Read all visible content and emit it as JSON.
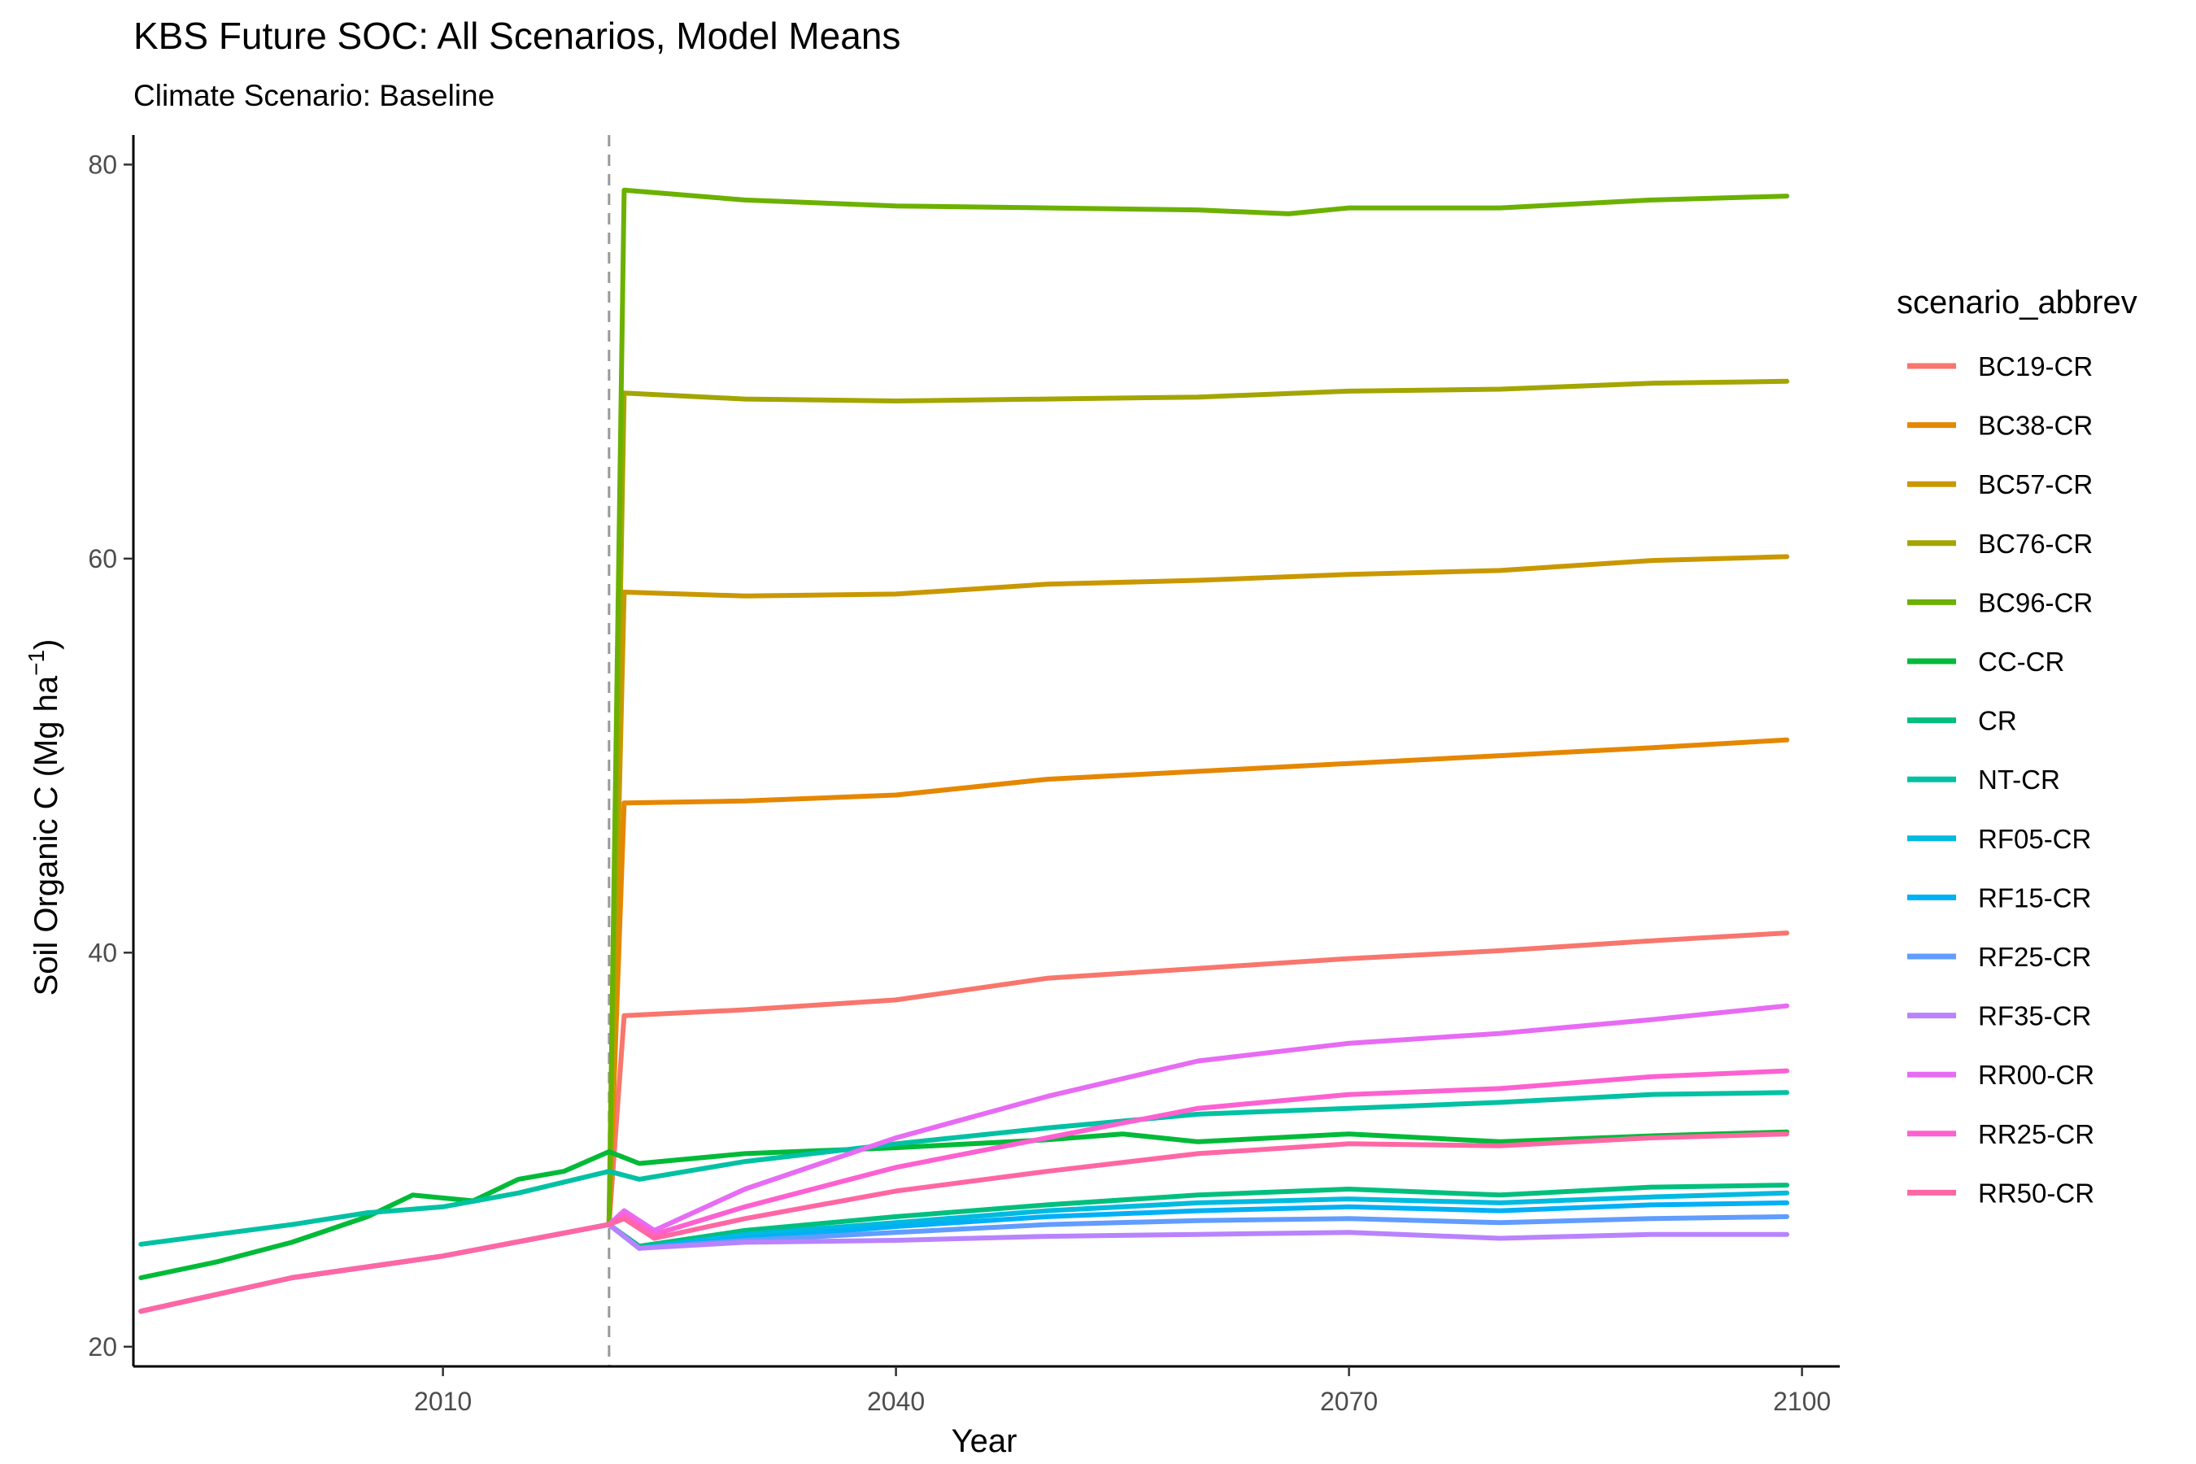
{
  "chart_data": {
    "type": "line",
    "title": "KBS  Future SOC: All Scenarios, Model Means",
    "subtitle": "Climate Scenario: Baseline",
    "xlabel": "Year",
    "ylabel": "Soil Organic C (Mg ha",
    "ylabel_sup": "−1",
    "ylabel_suffix": ")",
    "xlim": [
      1989.5,
      2102.5
    ],
    "ylim": [
      19,
      81.5
    ],
    "x_ticks": [
      2010,
      2040,
      2070,
      2100
    ],
    "y_ticks": [
      20,
      40,
      60,
      80
    ],
    "reference_line": {
      "x": 2021,
      "style": "dashed"
    },
    "grid": false,
    "legend": {
      "title": "scenario_abbrev",
      "placement": "right"
    },
    "series": [
      {
        "name": "BC19-CR",
        "color": "#F8766D",
        "points": [
          [
            1990,
            21.8
          ],
          [
            2000,
            23.5
          ],
          [
            2010,
            24.6
          ],
          [
            2021,
            26.2
          ],
          [
            2022,
            36.8
          ],
          [
            2030,
            37.1
          ],
          [
            2040,
            37.6
          ],
          [
            2050,
            38.7
          ],
          [
            2060,
            39.2
          ],
          [
            2070,
            39.7
          ],
          [
            2080,
            40.1
          ],
          [
            2090,
            40.6
          ],
          [
            2099,
            41.0
          ]
        ]
      },
      {
        "name": "BC38-CR",
        "color": "#E58700",
        "points": [
          [
            1990,
            21.8
          ],
          [
            2000,
            23.5
          ],
          [
            2010,
            24.6
          ],
          [
            2021,
            26.2
          ],
          [
            2022,
            47.6
          ],
          [
            2030,
            47.7
          ],
          [
            2040,
            48.0
          ],
          [
            2050,
            48.8
          ],
          [
            2060,
            49.2
          ],
          [
            2070,
            49.6
          ],
          [
            2080,
            50.0
          ],
          [
            2090,
            50.4
          ],
          [
            2099,
            50.8
          ]
        ]
      },
      {
        "name": "BC57-CR",
        "color": "#C99800",
        "points": [
          [
            1990,
            21.8
          ],
          [
            2000,
            23.5
          ],
          [
            2010,
            24.6
          ],
          [
            2021,
            26.2
          ],
          [
            2022,
            58.3
          ],
          [
            2030,
            58.1
          ],
          [
            2040,
            58.2
          ],
          [
            2050,
            58.7
          ],
          [
            2060,
            58.9
          ],
          [
            2070,
            59.2
          ],
          [
            2080,
            59.4
          ],
          [
            2090,
            59.9
          ],
          [
            2099,
            60.1
          ]
        ]
      },
      {
        "name": "BC76-CR",
        "color": "#A3A500",
        "points": [
          [
            1990,
            21.8
          ],
          [
            2000,
            23.5
          ],
          [
            2010,
            24.6
          ],
          [
            2021,
            26.2
          ],
          [
            2022,
            68.4
          ],
          [
            2030,
            68.1
          ],
          [
            2040,
            68.0
          ],
          [
            2050,
            68.1
          ],
          [
            2060,
            68.2
          ],
          [
            2070,
            68.5
          ],
          [
            2080,
            68.6
          ],
          [
            2090,
            68.9
          ],
          [
            2099,
            69.0
          ]
        ]
      },
      {
        "name": "BC96-CR",
        "color": "#6BB100",
        "points": [
          [
            1990,
            21.8
          ],
          [
            2000,
            23.5
          ],
          [
            2010,
            24.6
          ],
          [
            2021,
            26.2
          ],
          [
            2022,
            78.7
          ],
          [
            2030,
            78.2
          ],
          [
            2040,
            77.9
          ],
          [
            2050,
            77.8
          ],
          [
            2060,
            77.7
          ],
          [
            2066,
            77.5
          ],
          [
            2070,
            77.8
          ],
          [
            2080,
            77.8
          ],
          [
            2090,
            78.2
          ],
          [
            2099,
            78.4
          ]
        ]
      },
      {
        "name": "CC-CR",
        "color": "#00BA38",
        "points": [
          [
            1990,
            23.5
          ],
          [
            1995,
            24.3
          ],
          [
            2000,
            25.3
          ],
          [
            2005,
            26.6
          ],
          [
            2008,
            27.7
          ],
          [
            2012,
            27.4
          ],
          [
            2015,
            28.5
          ],
          [
            2018,
            28.9
          ],
          [
            2021,
            29.9
          ],
          [
            2023,
            29.3
          ],
          [
            2030,
            29.8
          ],
          [
            2040,
            30.1
          ],
          [
            2050,
            30.5
          ],
          [
            2055,
            30.8
          ],
          [
            2060,
            30.4
          ],
          [
            2070,
            30.8
          ],
          [
            2080,
            30.4
          ],
          [
            2090,
            30.7
          ],
          [
            2099,
            30.9
          ]
        ]
      },
      {
        "name": "CR",
        "color": "#00BF7D",
        "points": [
          [
            1990,
            21.8
          ],
          [
            2000,
            23.5
          ],
          [
            2010,
            24.6
          ],
          [
            2021,
            26.2
          ],
          [
            2023,
            25.1
          ],
          [
            2030,
            25.9
          ],
          [
            2040,
            26.6
          ],
          [
            2050,
            27.2
          ],
          [
            2060,
            27.7
          ],
          [
            2070,
            28.0
          ],
          [
            2080,
            27.7
          ],
          [
            2090,
            28.1
          ],
          [
            2099,
            28.2
          ]
        ]
      },
      {
        "name": "NT-CR",
        "color": "#00C1A3",
        "points": [
          [
            1990,
            25.2
          ],
          [
            1995,
            25.7
          ],
          [
            2000,
            26.2
          ],
          [
            2005,
            26.8
          ],
          [
            2010,
            27.1
          ],
          [
            2015,
            27.8
          ],
          [
            2021,
            28.9
          ],
          [
            2023,
            28.5
          ],
          [
            2030,
            29.4
          ],
          [
            2040,
            30.3
          ],
          [
            2050,
            31.1
          ],
          [
            2060,
            31.8
          ],
          [
            2070,
            32.1
          ],
          [
            2080,
            32.4
          ],
          [
            2090,
            32.8
          ],
          [
            2099,
            32.9
          ]
        ]
      },
      {
        "name": "RF05-CR",
        "color": "#00BAE0",
        "points": [
          [
            1990,
            21.8
          ],
          [
            2000,
            23.5
          ],
          [
            2010,
            24.6
          ],
          [
            2021,
            26.2
          ],
          [
            2023,
            25.0
          ],
          [
            2030,
            25.7
          ],
          [
            2040,
            26.3
          ],
          [
            2050,
            26.9
          ],
          [
            2060,
            27.3
          ],
          [
            2070,
            27.5
          ],
          [
            2080,
            27.3
          ],
          [
            2090,
            27.6
          ],
          [
            2099,
            27.8
          ]
        ]
      },
      {
        "name": "RF15-CR",
        "color": "#00B0F6",
        "points": [
          [
            1990,
            21.8
          ],
          [
            2000,
            23.5
          ],
          [
            2010,
            24.6
          ],
          [
            2021,
            26.2
          ],
          [
            2023,
            25.0
          ],
          [
            2030,
            25.5
          ],
          [
            2040,
            26.1
          ],
          [
            2050,
            26.6
          ],
          [
            2060,
            26.9
          ],
          [
            2070,
            27.1
          ],
          [
            2080,
            26.9
          ],
          [
            2090,
            27.2
          ],
          [
            2099,
            27.3
          ]
        ]
      },
      {
        "name": "RF25-CR",
        "color": "#619CFF",
        "points": [
          [
            1990,
            21.8
          ],
          [
            2000,
            23.5
          ],
          [
            2010,
            24.6
          ],
          [
            2021,
            26.2
          ],
          [
            2023,
            25.0
          ],
          [
            2030,
            25.4
          ],
          [
            2040,
            25.8
          ],
          [
            2050,
            26.2
          ],
          [
            2060,
            26.4
          ],
          [
            2070,
            26.5
          ],
          [
            2080,
            26.3
          ],
          [
            2090,
            26.5
          ],
          [
            2099,
            26.6
          ]
        ]
      },
      {
        "name": "RF35-CR",
        "color": "#B983FF",
        "points": [
          [
            1990,
            21.8
          ],
          [
            2000,
            23.5
          ],
          [
            2010,
            24.6
          ],
          [
            2021,
            26.2
          ],
          [
            2023,
            25.0
          ],
          [
            2030,
            25.3
          ],
          [
            2040,
            25.4
          ],
          [
            2050,
            25.6
          ],
          [
            2060,
            25.7
          ],
          [
            2070,
            25.8
          ],
          [
            2080,
            25.5
          ],
          [
            2090,
            25.7
          ],
          [
            2099,
            25.7
          ]
        ]
      },
      {
        "name": "RR00-CR",
        "color": "#E76BF3",
        "points": [
          [
            1990,
            21.8
          ],
          [
            2000,
            23.5
          ],
          [
            2010,
            24.6
          ],
          [
            2021,
            26.2
          ],
          [
            2022,
            26.9
          ],
          [
            2024,
            25.9
          ],
          [
            2030,
            28.0
          ],
          [
            2040,
            30.6
          ],
          [
            2050,
            32.7
          ],
          [
            2060,
            34.5
          ],
          [
            2070,
            35.4
          ],
          [
            2080,
            35.9
          ],
          [
            2090,
            36.6
          ],
          [
            2099,
            37.3
          ]
        ]
      },
      {
        "name": "RR25-CR",
        "color": "#FD61D1",
        "points": [
          [
            1990,
            21.8
          ],
          [
            2000,
            23.5
          ],
          [
            2010,
            24.6
          ],
          [
            2021,
            26.2
          ],
          [
            2022,
            26.7
          ],
          [
            2024,
            25.7
          ],
          [
            2030,
            27.1
          ],
          [
            2040,
            29.1
          ],
          [
            2050,
            30.6
          ],
          [
            2060,
            32.1
          ],
          [
            2070,
            32.8
          ],
          [
            2080,
            33.1
          ],
          [
            2090,
            33.7
          ],
          [
            2099,
            34.0
          ]
        ]
      },
      {
        "name": "RR50-CR",
        "color": "#FF67A4",
        "points": [
          [
            1990,
            21.8
          ],
          [
            2000,
            23.5
          ],
          [
            2010,
            24.6
          ],
          [
            2021,
            26.2
          ],
          [
            2022,
            26.5
          ],
          [
            2024,
            25.5
          ],
          [
            2030,
            26.5
          ],
          [
            2040,
            27.9
          ],
          [
            2050,
            28.9
          ],
          [
            2060,
            29.8
          ],
          [
            2070,
            30.3
          ],
          [
            2080,
            30.2
          ],
          [
            2090,
            30.6
          ],
          [
            2099,
            30.8
          ]
        ]
      }
    ]
  }
}
